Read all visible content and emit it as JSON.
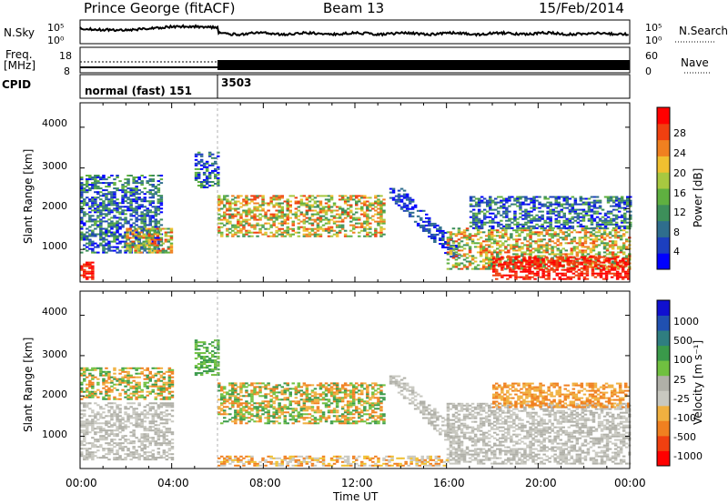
{
  "header": {
    "station": "Prince George (fitACF)",
    "beam": "Beam 13",
    "date": "15/Feb/2014"
  },
  "side_labels": {
    "nsky": "N.Sky",
    "nsearch": "N.Search",
    "freq_line1": "Freq.",
    "freq_line2": "[MHz]",
    "nave": "Nave",
    "cpid": "CPID"
  },
  "cpid_labels": [
    "normal (fast) 151",
    "3503"
  ],
  "panels": {
    "noise": {
      "ticks_left": [
        "10^5",
        "10^0"
      ],
      "ticks_right": [
        "10^5",
        "10^0"
      ]
    },
    "freq": {
      "ticks_left": [
        "18",
        "8"
      ],
      "ticks_right": [
        "60",
        "0"
      ]
    },
    "power": {
      "ylabel": "Slant Range [km]",
      "yticks": [
        "1000",
        "2000",
        "3000",
        "4000"
      ],
      "colorbar_label": "Power [dB]",
      "colorbar_ticks": [
        "4",
        "8",
        "12",
        "16",
        "20",
        "24",
        "28"
      ],
      "colorbar_colors": [
        "#0000ff",
        "#1c3fbf",
        "#2f6e8d",
        "#3d8f5a",
        "#5fb040",
        "#a8c840",
        "#f0c030",
        "#f08020",
        "#f04010",
        "#ff0000"
      ]
    },
    "velocity": {
      "ylabel": "Slant Range [km]",
      "yticks": [
        "1000",
        "2000",
        "3000",
        "4000"
      ],
      "colorbar_label": "Velocity [m s-1]",
      "colorbar_ticks": [
        "1000",
        "500",
        "100",
        "25",
        "-25",
        "-100",
        "-500",
        "-1000"
      ],
      "colorbar_colors": [
        "#1010d0",
        "#2050b0",
        "#2f7e80",
        "#3a9a4a",
        "#70c040",
        "#b0b0a8",
        "#c8c8c0",
        "#f0b040",
        "#f08020",
        "#f04010",
        "#ff0000"
      ]
    }
  },
  "xaxis": {
    "label": "Time UT",
    "ticks": [
      "00:00",
      "04:00",
      "08:00",
      "12:00",
      "16:00",
      "20:00",
      "00:00"
    ]
  },
  "chart_data": [
    {
      "type": "heatmap",
      "title": "Power",
      "xlabel": "Time UT",
      "ylabel": "Slant Range [km]",
      "xlim": [
        "00:00",
        "24:00"
      ],
      "ylim": [
        200,
        4600
      ],
      "zlabel": "Power [dB]",
      "zlim": [
        0,
        30
      ],
      "regions": [
        {
          "t0": 0.0,
          "t1": 3.6,
          "r0": 900,
          "r1": 2800,
          "level": "blue-green mix"
        },
        {
          "t0": 0.0,
          "t1": 0.6,
          "r0": 250,
          "r1": 700,
          "level": "red"
        },
        {
          "t0": 2.0,
          "t1": 4.0,
          "r0": 900,
          "r1": 1500,
          "level": "green-red"
        },
        {
          "t0": 5.0,
          "t1": 6.0,
          "r0": 2500,
          "r1": 3400,
          "level": "blue-green"
        },
        {
          "t0": 6.0,
          "t1": 13.2,
          "r0": 1300,
          "r1": 2300,
          "level": "green-orange-red"
        },
        {
          "t0": 13.5,
          "t1": 16.5,
          "r0": 800,
          "r1": 2500,
          "level": "blue diagonal"
        },
        {
          "t0": 16.0,
          "t1": 24.0,
          "r0": 500,
          "r1": 1500,
          "level": "green-orange-red"
        },
        {
          "t0": 18.0,
          "t1": 24.0,
          "r0": 250,
          "r1": 800,
          "level": "red"
        },
        {
          "t0": 17.0,
          "t1": 24.0,
          "r0": 1500,
          "r1": 2300,
          "level": "blue-green"
        }
      ]
    },
    {
      "type": "heatmap",
      "title": "Velocity",
      "xlabel": "Time UT",
      "ylabel": "Slant Range [km]",
      "xlim": [
        "00:00",
        "24:00"
      ],
      "ylim": [
        200,
        4600
      ],
      "zlabel": "Velocity [m s-1]",
      "zlim": [
        -1000,
        1000
      ],
      "regions": [
        {
          "t0": 0.0,
          "t1": 4.0,
          "r0": 400,
          "r1": 1800,
          "level": "grey"
        },
        {
          "t0": 0.0,
          "t1": 4.0,
          "r0": 1900,
          "r1": 2700,
          "level": "green-orange"
        },
        {
          "t0": 5.0,
          "t1": 6.0,
          "r0": 2500,
          "r1": 3400,
          "level": "green"
        },
        {
          "t0": 6.0,
          "t1": 13.2,
          "r0": 1300,
          "r1": 2300,
          "level": "green-orange"
        },
        {
          "t0": 13.5,
          "t1": 16.5,
          "r0": 800,
          "r1": 2500,
          "level": "grey diagonal"
        },
        {
          "t0": 16.0,
          "t1": 24.0,
          "r0": 300,
          "r1": 1800,
          "level": "grey"
        },
        {
          "t0": 18.0,
          "t1": 24.0,
          "r0": 1700,
          "r1": 2300,
          "level": "orange"
        },
        {
          "t0": 6.0,
          "t1": 16.0,
          "r0": 250,
          "r1": 500,
          "level": "orange-yellow speckle"
        }
      ]
    }
  ]
}
